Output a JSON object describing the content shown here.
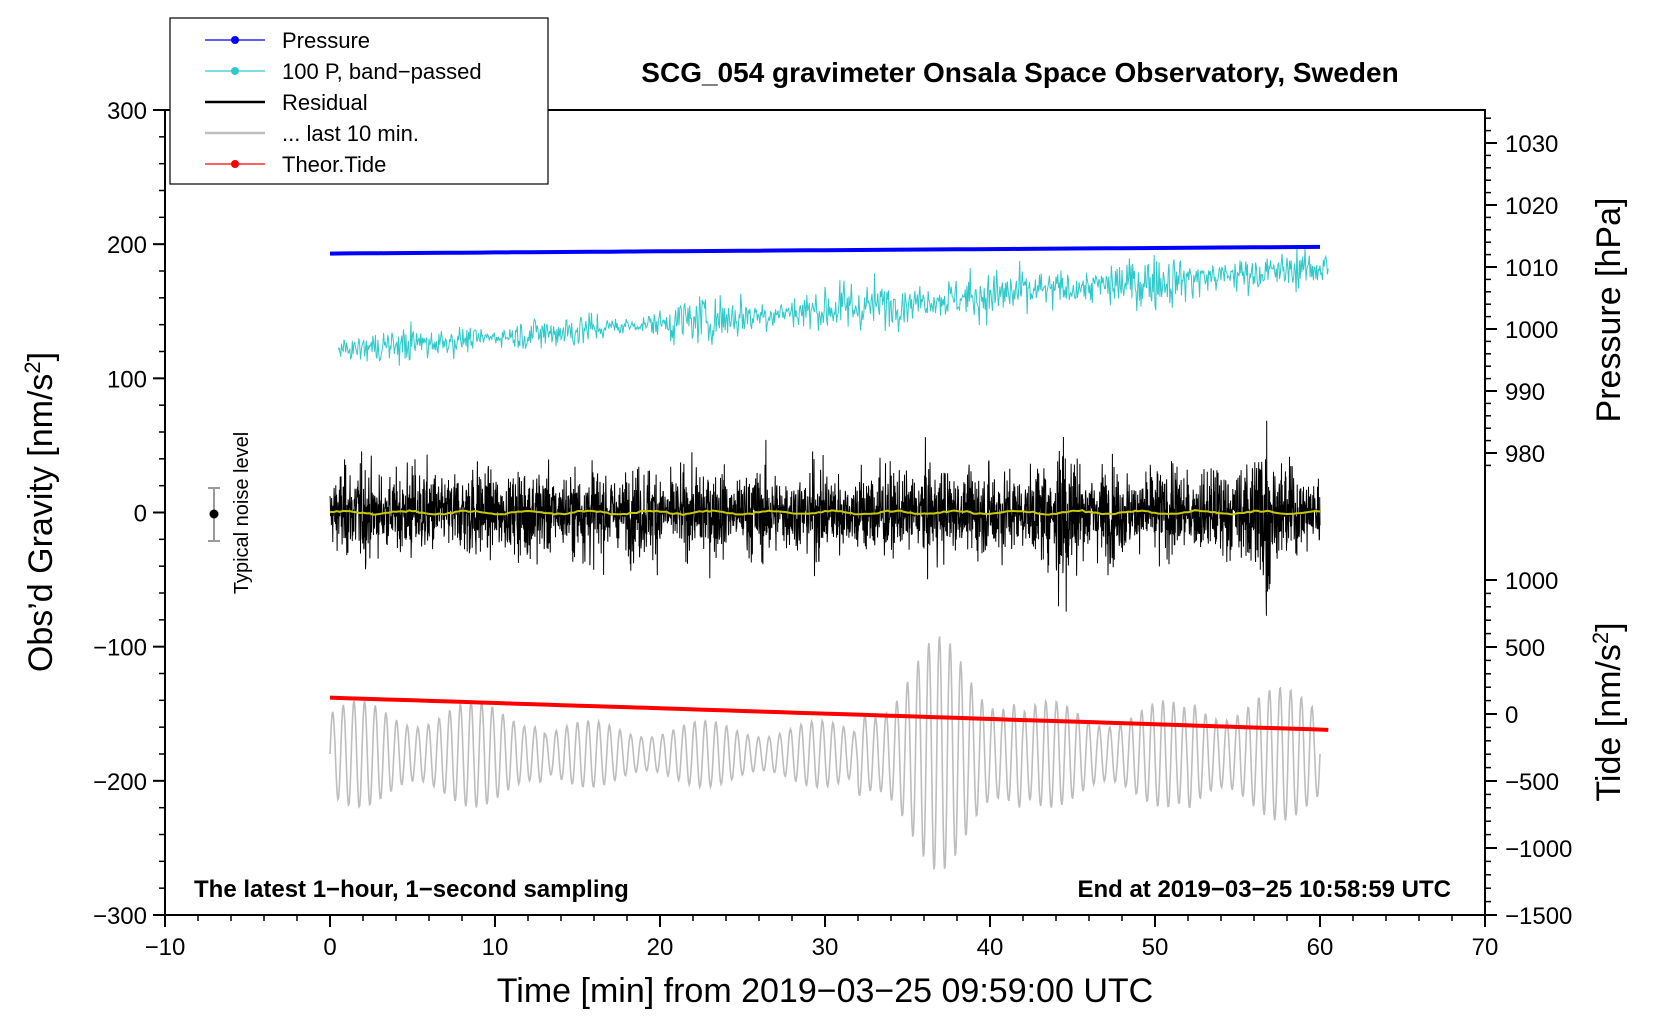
{
  "chart_data": {
    "type": "line",
    "title": "SCG_054 gravimeter Onsala Space Observatory, Sweden",
    "xlabel": "Time [min] from 2019−03−25 09:59:00 UTC",
    "ylabel_left": "Obs’d Gravity [nm/s",
    "ylabel_left_sup": "2",
    "ylabel_left_end": "]",
    "ylabel_pressure": "Pressure [hPa]",
    "ylabel_tide": "Tide [nm/s",
    "ylabel_tide_sup": "2",
    "ylabel_tide_end": "]",
    "xlim": [
      -10,
      70
    ],
    "ylim": [
      -300,
      300
    ],
    "x_ticks": [
      {
        "v": -10,
        "label": "−10"
      },
      {
        "v": 0,
        "label": "0"
      },
      {
        "v": 10,
        "label": "10"
      },
      {
        "v": 20,
        "label": "20"
      },
      {
        "v": 30,
        "label": "30"
      },
      {
        "v": 40,
        "label": "40"
      },
      {
        "v": 50,
        "label": "50"
      },
      {
        "v": 60,
        "label": "60"
      },
      {
        "v": 70,
        "label": "70"
      }
    ],
    "y_ticks": [
      {
        "v": 300,
        "label": "300"
      },
      {
        "v": 200,
        "label": "200"
      },
      {
        "v": 100,
        "label": "100"
      },
      {
        "v": 0,
        "label": "0"
      },
      {
        "v": -100,
        "label": "−100"
      },
      {
        "v": -200,
        "label": "−200"
      },
      {
        "v": -300,
        "label": "−300"
      }
    ],
    "pressure_ticks": [
      {
        "v": 980,
        "label": "980"
      },
      {
        "v": 990,
        "label": "990"
      },
      {
        "v": 1000,
        "label": "1000"
      },
      {
        "v": 1010,
        "label": "1010"
      },
      {
        "v": 1020,
        "label": "1020"
      },
      {
        "v": 1030,
        "label": "1030"
      }
    ],
    "pressure_range_hpa": [
      980,
      1030
    ],
    "tide_ticks": [
      {
        "v": 1000,
        "label": "1000"
      },
      {
        "v": 500,
        "label": "500"
      },
      {
        "v": 0,
        "label": "0"
      },
      {
        "v": -500,
        "label": "−500"
      },
      {
        "v": -1000,
        "label": "−1000"
      },
      {
        "v": -1500,
        "label": "−1500"
      }
    ],
    "tide_range_nms2": [
      -1500,
      1000
    ],
    "legend": [
      {
        "label": "Pressure",
        "color": "#0000ff",
        "marker": true
      },
      {
        "label": "100 P, band−passed",
        "color": "#2fc9c9",
        "marker": true
      },
      {
        "label": "Residual",
        "color": "#000000",
        "marker": false
      },
      {
        "label": "... last 10 min.",
        "color": "#bdbdbd",
        "marker": false
      },
      {
        "label": "Theor.Tide",
        "color": "#ff0000",
        "marker": true
      }
    ],
    "noise_annotation": "Typical noise level",
    "noise_level_range": [
      -20,
      20
    ],
    "bottom_left_note": "The latest 1−hour, 1−second sampling",
    "bottom_right_note": "End at 2019−03−25 10:58:59 UTC",
    "series": [
      {
        "name": "Pressure",
        "color": "#0000ff",
        "x": [
          0,
          60
        ],
        "values_gravity_axis": [
          193,
          198
        ]
      },
      {
        "name": "100 P, band-passed",
        "color": "#2fc9c9",
        "x": [
          0,
          60
        ],
        "trend_gravity_axis": [
          121,
          183
        ]
      },
      {
        "name": "Residual",
        "color": "#000000",
        "x": [
          0,
          60
        ],
        "center": 0,
        "typical_amplitude": 40
      },
      {
        "name": "Residual (smoothed)",
        "color": "#c8c800",
        "x": [
          0,
          60
        ],
        "center": 0
      },
      {
        "name": "... last 10 min.",
        "color": "#bdbdbd",
        "x": [
          0,
          60
        ],
        "center": -180,
        "typical_amplitude": 40
      },
      {
        "name": "Theor.Tide",
        "color": "#ff0000",
        "x": [
          0,
          60.5
        ],
        "values_gravity_axis": [
          -138,
          -162
        ]
      }
    ]
  }
}
